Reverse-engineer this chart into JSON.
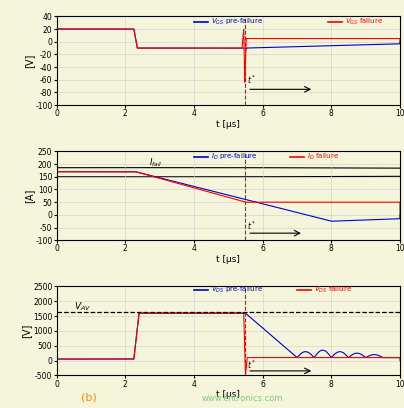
{
  "blue": "#0000CD",
  "red": "#FF0000",
  "grid_color": "#CCCCCC",
  "bg_color": "#F5F5DC",
  "t_star": 5.5,
  "panel1": {
    "ylabel": "[V]",
    "ylim": [
      -100,
      40
    ],
    "yticks": [
      -100,
      -80,
      -60,
      -40,
      -20,
      0,
      20,
      40
    ],
    "xlim": [
      0,
      10
    ],
    "xticks": [
      0,
      2,
      4,
      6,
      8,
      10
    ]
  },
  "panel2": {
    "ylabel": "[A]",
    "ylim": [
      -100,
      250
    ],
    "yticks": [
      -100,
      -50,
      0,
      50,
      100,
      150,
      200,
      250
    ],
    "xlim": [
      0,
      10
    ],
    "xticks": [
      0,
      2,
      4,
      6,
      8,
      10
    ],
    "I_fail_x": 2.5,
    "I_fail_y": 168
  },
  "panel3": {
    "ylabel": "[V]",
    "ylim": [
      -500,
      2500
    ],
    "yticks": [
      -500,
      0,
      500,
      1000,
      1500,
      2000,
      2500
    ],
    "xlim": [
      0,
      10
    ],
    "xticks": [
      0,
      2,
      4,
      6,
      8,
      10
    ],
    "V_AV": 1650
  },
  "label_b": "(b)",
  "watermark": "www.cntronics.com"
}
